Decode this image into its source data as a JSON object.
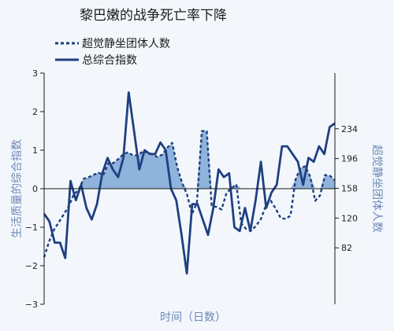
{
  "chart_data": {
    "type": "line",
    "title": "黎巴嫩的战争死亡率下降",
    "xlabel": "时间（日数）",
    "ylabel_left": "生活质量的综合指数",
    "ylabel_right": "超觉静坐团体人数",
    "grid": false,
    "legend_position": "top-left",
    "left_axis": {
      "ylim": [
        -3,
        3
      ],
      "ticks": [
        3,
        2,
        1,
        0,
        -1,
        -2,
        -3
      ]
    },
    "right_axis": {
      "ylim": [
        10,
        305
      ],
      "ticks": [
        82,
        120,
        158,
        196,
        234
      ]
    },
    "colors": {
      "line": "#1f3f80",
      "fill": "#8fb3db",
      "background": "#f3f7fc",
      "axis": "#1a1a1a"
    },
    "series": [
      {
        "name": "超觉静坐团体人数",
        "style": "dashed",
        "axis": "right",
        "values": [
          70,
          90,
          105,
          115,
          125,
          135,
          150,
          156,
          170,
          172,
          175,
          178,
          175,
          190,
          190,
          195,
          201,
          204,
          200,
          200,
          205,
          204,
          201,
          198,
          201,
          210,
          216,
          185,
          165,
          150,
          125,
          140,
          231,
          231,
          136,
          134,
          131,
          152,
          158,
          163,
          113,
          106,
          104,
          110,
          119,
          136,
          142,
          132,
          120,
          119,
          123,
          169,
          184,
          186,
          173,
          142,
          149,
          175,
          174,
          168
        ]
      },
      {
        "name": "总综合指数",
        "style": "solid",
        "axis": "left",
        "values": [
          -0.65,
          -0.85,
          -1.4,
          -1.4,
          -1.8,
          0.2,
          -0.3,
          0.1,
          -0.5,
          -0.8,
          -0.4,
          0.4,
          0.8,
          0.5,
          0.3,
          0.8,
          2.5,
          1.5,
          0.5,
          1,
          0.9,
          0.9,
          1.2,
          1,
          0,
          -0.3,
          -1.2,
          -2.2,
          -0.4,
          -0.4,
          -0.8,
          -1.2,
          -0.5,
          0.5,
          0.3,
          0.4,
          -1.0,
          -1.1,
          -0.5,
          -1.1,
          -0.3,
          0.7,
          -0.5,
          -0.1,
          0.1,
          1.1,
          1.1,
          0.9,
          0.7,
          0.1,
          0.8,
          0.7,
          1.1,
          0.9,
          1.6,
          1.7
        ]
      }
    ]
  }
}
